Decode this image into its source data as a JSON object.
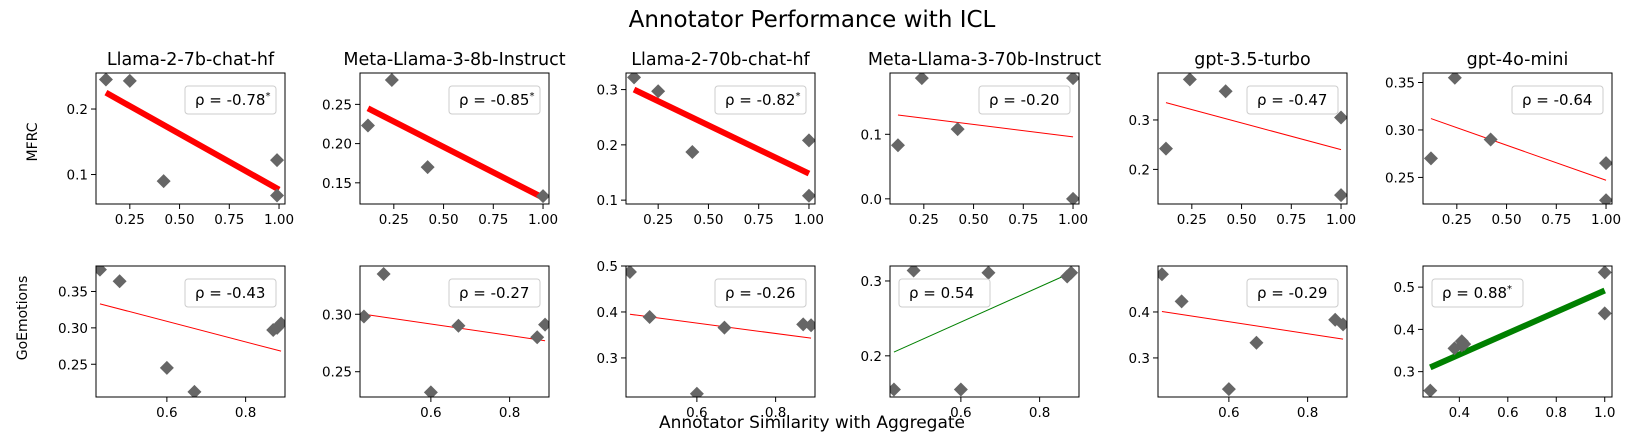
{
  "figure": {
    "title": "Annotator Performance with ICL",
    "xlabel": "Annotator Similarity with Aggregate",
    "row_labels": [
      "MFRC",
      "GoEmotions"
    ]
  },
  "colors": {
    "point": "#666666",
    "negative_line": "#ff0000",
    "positive_line": "#008000",
    "axes": "#000000",
    "legend_border": "#cccccc"
  },
  "chart_data": [
    {
      "type": "scatter",
      "dataset": "MFRC",
      "title": "Llama-2-7b-chat-hf",
      "x": [
        0.13,
        0.25,
        0.42,
        0.99,
        0.99
      ],
      "y": [
        0.245,
        0.243,
        0.09,
        0.122,
        0.068
      ],
      "xlim": [
        0.08,
        1.03
      ],
      "ylim": [
        0.055,
        0.255
      ],
      "xticks": [
        0.25,
        0.5,
        0.75,
        1.0
      ],
      "xtick_labels": [
        "0.25",
        "0.50",
        "0.75",
        "1.00"
      ],
      "yticks": [
        0.1,
        0.2
      ],
      "ytick_labels": [
        "0.1",
        "0.2"
      ],
      "fit": [
        [
          0.13,
          0.225
        ],
        [
          1.0,
          0.077
        ]
      ],
      "rho": "ρ = -0.78",
      "significant": true,
      "sign": "negative",
      "thick": true
    },
    {
      "type": "scatter",
      "dataset": "MFRC",
      "title": "Meta-Llama-3-8b-Instruct",
      "x": [
        0.12,
        0.24,
        0.42,
        1.0
      ],
      "y": [
        0.223,
        0.281,
        0.17,
        0.133
      ],
      "xlim": [
        0.08,
        1.03
      ],
      "ylim": [
        0.123,
        0.29
      ],
      "xticks": [
        0.25,
        0.5,
        0.75,
        1.0
      ],
      "xtick_labels": [
        "0.25",
        "0.50",
        "0.75",
        "1.00"
      ],
      "yticks": [
        0.15,
        0.2,
        0.25
      ],
      "ytick_labels": [
        "0.15",
        "0.20",
        "0.25"
      ],
      "fit": [
        [
          0.12,
          0.245
        ],
        [
          1.0,
          0.131
        ]
      ],
      "rho": "ρ = -0.85",
      "significant": true,
      "sign": "negative",
      "thick": true
    },
    {
      "type": "scatter",
      "dataset": "MFRC",
      "title": "Llama-2-70b-chat-hf",
      "x": [
        0.13,
        0.25,
        0.42,
        1.0,
        1.0
      ],
      "y": [
        0.322,
        0.297,
        0.187,
        0.208,
        0.108
      ],
      "xlim": [
        0.09,
        1.03
      ],
      "ylim": [
        0.093,
        0.33
      ],
      "xticks": [
        0.25,
        0.5,
        0.75,
        1.0
      ],
      "xtick_labels": [
        "0.25",
        "0.50",
        "0.75",
        "1.00"
      ],
      "yticks": [
        0.1,
        0.2,
        0.3
      ],
      "ytick_labels": [
        "0.1",
        "0.2",
        "0.3"
      ],
      "fit": [
        [
          0.13,
          0.3
        ],
        [
          1.0,
          0.148
        ]
      ],
      "rho": "ρ = -0.82",
      "significant": true,
      "sign": "negative",
      "thick": true
    },
    {
      "type": "scatter",
      "dataset": "MFRC",
      "title": "Meta-Llama-3-70b-Instruct",
      "x": [
        0.12,
        0.24,
        0.42,
        1.0,
        1.0
      ],
      "y": [
        0.083,
        0.187,
        0.108,
        0.187,
        0.0
      ],
      "xlim": [
        0.08,
        1.03
      ],
      "ylim": [
        -0.008,
        0.195
      ],
      "xticks": [
        0.25,
        0.5,
        0.75,
        1.0
      ],
      "xtick_labels": [
        "0.25",
        "0.50",
        "0.75",
        "1.00"
      ],
      "yticks": [
        0.0,
        0.1
      ],
      "ytick_labels": [
        "0.0",
        "0.1"
      ],
      "fit": [
        [
          0.12,
          0.13
        ],
        [
          1.0,
          0.096
        ]
      ],
      "rho": "ρ = -0.20",
      "significant": false,
      "sign": "negative",
      "thick": false
    },
    {
      "type": "scatter",
      "dataset": "MFRC",
      "title": "gpt-3.5-turbo",
      "x": [
        0.12,
        0.24,
        0.42,
        1.0,
        1.0
      ],
      "y": [
        0.242,
        0.382,
        0.358,
        0.305,
        0.148
      ],
      "xlim": [
        0.08,
        1.03
      ],
      "ylim": [
        0.13,
        0.395
      ],
      "xticks": [
        0.25,
        0.5,
        0.75,
        1.0
      ],
      "xtick_labels": [
        "0.25",
        "0.50",
        "0.75",
        "1.00"
      ],
      "yticks": [
        0.2,
        0.3
      ],
      "ytick_labels": [
        "0.2",
        "0.3"
      ],
      "fit": [
        [
          0.12,
          0.335
        ],
        [
          1.0,
          0.24
        ]
      ],
      "rho": "ρ = -0.47",
      "significant": false,
      "sign": "negative",
      "thick": false
    },
    {
      "type": "scatter",
      "dataset": "MFRC",
      "title": "gpt-4o-mini",
      "x": [
        0.12,
        0.24,
        0.42,
        1.0,
        1.0
      ],
      "y": [
        0.27,
        0.355,
        0.29,
        0.265,
        0.226
      ],
      "xlim": [
        0.08,
        1.03
      ],
      "ylim": [
        0.222,
        0.36
      ],
      "xticks": [
        0.25,
        0.5,
        0.75,
        1.0
      ],
      "xtick_labels": [
        "0.25",
        "0.50",
        "0.75",
        "1.00"
      ],
      "yticks": [
        0.25,
        0.3,
        0.35
      ],
      "ytick_labels": [
        "0.25",
        "0.30",
        "0.35"
      ],
      "fit": [
        [
          0.12,
          0.312
        ],
        [
          1.0,
          0.247
        ]
      ],
      "rho": "ρ = -0.64",
      "significant": false,
      "sign": "negative",
      "thick": false
    },
    {
      "type": "scatter",
      "dataset": "GoEmotions",
      "title": "Llama-2-7b-chat-hf",
      "x": [
        0.43,
        0.48,
        0.6,
        0.67,
        0.87,
        0.88,
        0.89
      ],
      "y": [
        0.38,
        0.364,
        0.245,
        0.212,
        0.297,
        0.3,
        0.306
      ],
      "xlim": [
        0.42,
        0.9
      ],
      "ylim": [
        0.205,
        0.385
      ],
      "xticks": [
        0.6,
        0.8
      ],
      "xtick_labels": [
        "0.6",
        "0.8"
      ],
      "yticks": [
        0.25,
        0.3,
        0.35
      ],
      "ytick_labels": [
        "0.25",
        "0.30",
        "0.35"
      ],
      "fit": [
        [
          0.43,
          0.333
        ],
        [
          0.89,
          0.268
        ]
      ],
      "rho": "ρ = -0.43",
      "significant": false,
      "sign": "negative",
      "thick": false
    },
    {
      "type": "scatter",
      "dataset": "GoEmotions",
      "title": "Meta-Llama-3-8b-Instruct",
      "x": [
        0.43,
        0.48,
        0.6,
        0.67,
        0.87,
        0.89
      ],
      "y": [
        0.298,
        0.335,
        0.232,
        0.29,
        0.28,
        0.291
      ],
      "xlim": [
        0.42,
        0.9
      ],
      "ylim": [
        0.228,
        0.342
      ],
      "xticks": [
        0.6,
        0.8
      ],
      "xtick_labels": [
        "0.6",
        "0.8"
      ],
      "yticks": [
        0.25,
        0.3
      ],
      "ytick_labels": [
        "0.25",
        "0.30"
      ],
      "fit": [
        [
          0.43,
          0.3
        ],
        [
          0.89,
          0.277
        ]
      ],
      "rho": "ρ = -0.27",
      "significant": false,
      "sign": "negative",
      "thick": false
    },
    {
      "type": "scatter",
      "dataset": "GoEmotions",
      "title": "Llama-2-70b-chat-hf",
      "x": [
        0.43,
        0.48,
        0.6,
        0.67,
        0.87,
        0.89
      ],
      "y": [
        0.487,
        0.389,
        0.222,
        0.366,
        0.373,
        0.371
      ],
      "xlim": [
        0.42,
        0.9
      ],
      "ylim": [
        0.215,
        0.5
      ],
      "xticks": [
        0.6,
        0.8
      ],
      "xtick_labels": [
        "0.6",
        "0.8"
      ],
      "yticks": [
        0.3,
        0.4,
        0.5
      ],
      "ytick_labels": [
        "0.3",
        "0.4",
        "0.5"
      ],
      "fit": [
        [
          0.43,
          0.395
        ],
        [
          0.89,
          0.343
        ]
      ],
      "rho": "ρ = -0.26",
      "significant": false,
      "sign": "negative",
      "thick": false
    },
    {
      "type": "scatter",
      "dataset": "GoEmotions",
      "title": "Meta-Llama-3-70b-Instruct",
      "x": [
        0.43,
        0.48,
        0.6,
        0.67,
        0.87,
        0.88
      ],
      "y": [
        0.155,
        0.314,
        0.155,
        0.311,
        0.306,
        0.311
      ],
      "xlim": [
        0.42,
        0.9
      ],
      "ylim": [
        0.145,
        0.32
      ],
      "xticks": [
        0.6,
        0.8
      ],
      "xtick_labels": [
        "0.6",
        "0.8"
      ],
      "yticks": [
        0.2,
        0.3
      ],
      "ytick_labels": [
        "0.2",
        "0.3"
      ],
      "fit": [
        [
          0.43,
          0.205
        ],
        [
          0.88,
          0.311
        ]
      ],
      "rho": "ρ = 0.54",
      "significant": false,
      "sign": "positive",
      "thick": false
    },
    {
      "type": "scatter",
      "dataset": "GoEmotions",
      "title": "gpt-3.5-turbo",
      "x": [
        0.43,
        0.48,
        0.6,
        0.67,
        0.87,
        0.89
      ],
      "y": [
        0.482,
        0.423,
        0.232,
        0.333,
        0.383,
        0.373
      ],
      "xlim": [
        0.42,
        0.9
      ],
      "ylim": [
        0.215,
        0.5
      ],
      "xticks": [
        0.6,
        0.8
      ],
      "xtick_labels": [
        "0.6",
        "0.8"
      ],
      "yticks": [
        0.3,
        0.4
      ],
      "ytick_labels": [
        "0.3",
        "0.4"
      ],
      "fit": [
        [
          0.43,
          0.401
        ],
        [
          0.89,
          0.341
        ]
      ],
      "rho": "ρ = -0.29",
      "significant": false,
      "sign": "negative",
      "thick": false
    },
    {
      "type": "scatter",
      "dataset": "GoEmotions",
      "title": "gpt-4o-mini",
      "x": [
        0.28,
        0.38,
        0.41,
        0.41,
        0.42,
        1.0,
        1.0
      ],
      "y": [
        0.255,
        0.355,
        0.362,
        0.372,
        0.365,
        0.535,
        0.438
      ],
      "xlim": [
        0.25,
        1.03
      ],
      "ylim": [
        0.24,
        0.55
      ],
      "xticks": [
        0.4,
        0.6,
        0.8,
        1.0
      ],
      "xtick_labels": [
        "0.4",
        "0.6",
        "0.8",
        "1.0"
      ],
      "yticks": [
        0.3,
        0.4,
        0.5
      ],
      "ytick_labels": [
        "0.3",
        "0.4",
        "0.5"
      ],
      "fit": [
        [
          0.28,
          0.31
        ],
        [
          1.0,
          0.492
        ]
      ],
      "rho": "ρ = 0.88",
      "significant": true,
      "sign": "positive",
      "thick": true
    }
  ]
}
